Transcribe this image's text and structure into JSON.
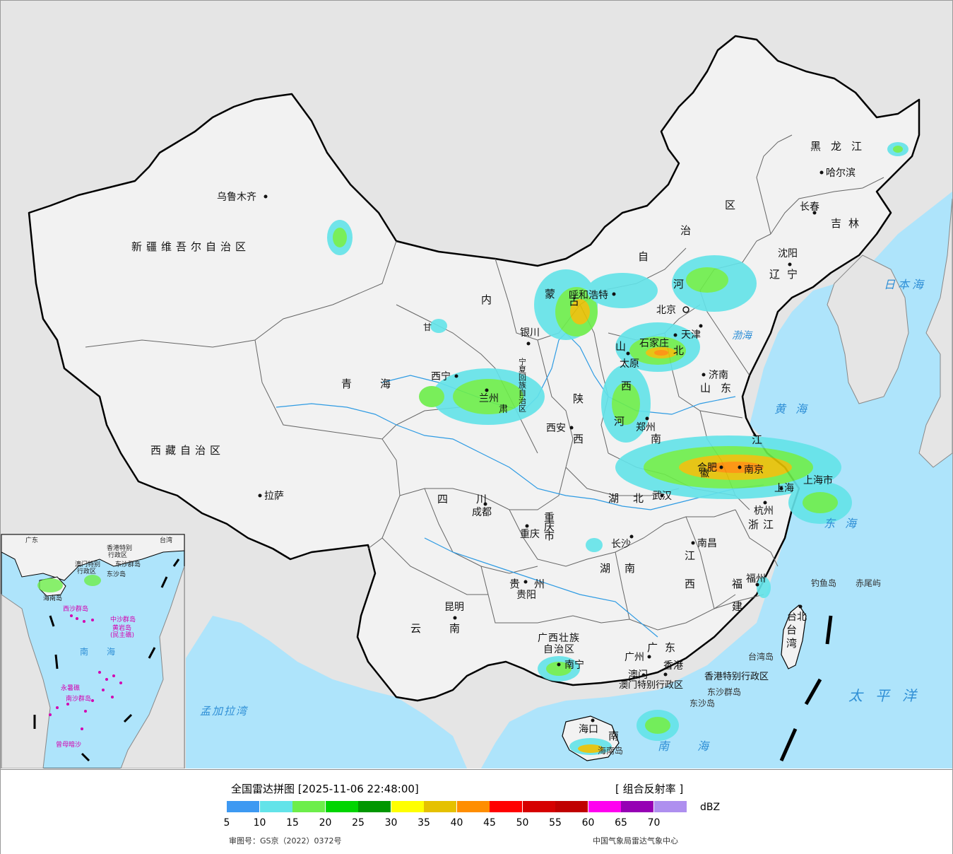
{
  "map": {
    "regions": {
      "xinjiang": "新疆维吾尔自治区",
      "tibet": "西藏自治区",
      "qinghai": "青海",
      "gansu": "甘肃",
      "inner_mongolia": [
        "内",
        "蒙",
        "古",
        "自",
        "治",
        "区"
      ],
      "ningxia": "宁夏回族自治区",
      "shaanxi": "陕西",
      "shanxi": "山西",
      "hebei": "河北",
      "shandong": "山东",
      "henan": "河南",
      "jiangsu": "江苏",
      "anhui": "安徽",
      "hubei": "湖北",
      "sichuan": "四川",
      "chongqing": "重庆市",
      "guizhou": "贵州",
      "yunnan": "云南",
      "hunan": "湖南",
      "jiangxi": "江西",
      "zhejiang": "浙江",
      "fujian": "福建",
      "guangxi": "广西壮族自治区",
      "guangdong": "广东",
      "hainan": "海南",
      "taiwan": "台湾",
      "liaoning": "辽宁",
      "jilin": "吉林",
      "heilongjiang": "黑龙江",
      "beijing": "北京",
      "tianjin": "天津",
      "shanghai": "上海市",
      "hongkong": "香港特别行政区",
      "macau": "澳门特别行政区"
    },
    "cities": {
      "urumqi": "乌鲁木齐",
      "lhasa": "拉萨",
      "xining": "西宁",
      "lanzhou": "兰州",
      "yinchuan": "银川",
      "hohhot": "呼和浩特",
      "taiyuan": "太原",
      "shijiazhuang": "石家庄",
      "beijing": "北京",
      "tianjin": "天津",
      "jinan": "济南",
      "xian": "西安",
      "zhengzhou": "郑州",
      "hefei": "合肥",
      "nanjing": "南京",
      "shanghai": "上海",
      "hangzhou": "杭州",
      "wuhan": "武汉",
      "chengdu": "成都",
      "chongqing": "重庆",
      "guiyang": "贵阳",
      "kunming": "昆明",
      "changsha": "长沙",
      "nanchang": "南昌",
      "fuzhou": "福州",
      "taipei": "台北",
      "nanning": "南宁",
      "guangzhou": "广州",
      "macau": "澳门",
      "hongkong": "香港",
      "haikou": "海口",
      "shenyang": "沈阳",
      "changchun": "长春",
      "harbin": "哈尔滨"
    },
    "seas": {
      "japan_sea": "日本海",
      "yellow_sea": "黄海",
      "east_sea": "东海",
      "pacific": "太平洋",
      "south_sea": "南海",
      "bengal": "孟加拉湾",
      "bohai": "渤海"
    },
    "islands": {
      "diaoyu": "钓鱼岛",
      "chiwei": "赤尾屿",
      "dongsha_group": "东沙群岛",
      "dongsha_island": "东沙岛",
      "taiwan_island": "台湾岛",
      "hainan_island": "海南岛"
    },
    "inset": {
      "labels": [
        "广东",
        "台湾",
        "香港特别",
        "行政区",
        "澳门特别",
        "行政区",
        "东沙群岛",
        "东沙岛",
        "海南岛",
        "西沙群岛",
        "中沙群岛",
        "黄岩岛",
        "(民主礁)",
        "南",
        "海",
        "永暑礁",
        "南沙群岛",
        "曾母暗沙"
      ]
    }
  },
  "legend": {
    "title": "全国雷达拼图 [2025-11-06 22:48:00]",
    "product": "[ 组合反射率 ]",
    "unit": "dBZ",
    "colors": [
      "#3d99f2",
      "#63e3e9",
      "#6dee4a",
      "#00d500",
      "#009700",
      "#ffff00",
      "#e5c100",
      "#ff8e00",
      "#ff0000",
      "#d60000",
      "#c00000",
      "#ff00f0",
      "#9600b4",
      "#ae8fef"
    ],
    "ticks": [
      "5",
      "10",
      "15",
      "20",
      "25",
      "30",
      "35",
      "40",
      "45",
      "50",
      "55",
      "60",
      "65",
      "70"
    ],
    "approval_no": "审图号：GS京（2022）0372号",
    "source": "中国气象局雷达气象中心"
  }
}
